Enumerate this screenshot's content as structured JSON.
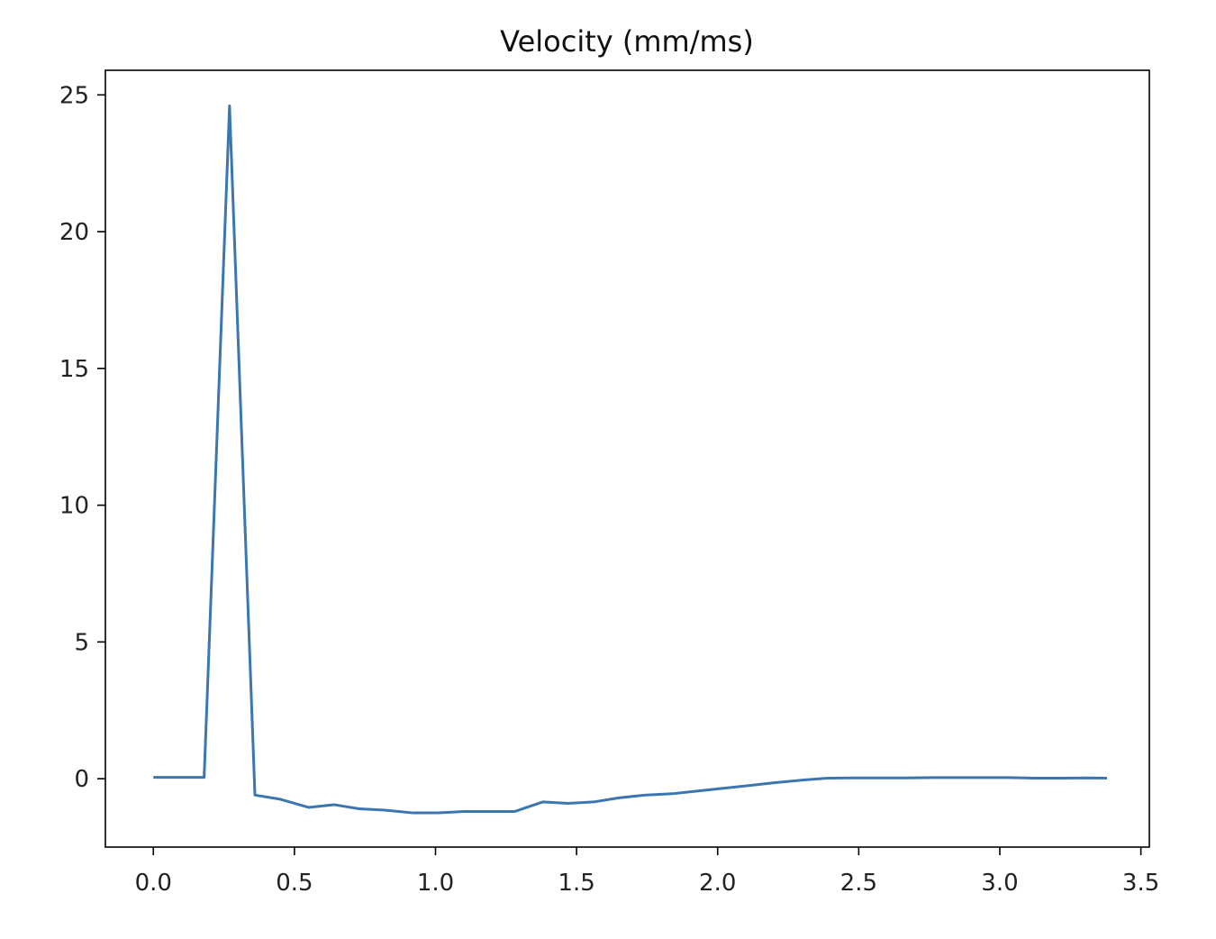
{
  "chart_data": {
    "type": "line",
    "title": "Velocity (mm/ms)",
    "xlabel": "",
    "ylabel": "",
    "xlim": [
      -0.17,
      3.53
    ],
    "ylim": [
      -2.5,
      25.9
    ],
    "xticks": [
      0.0,
      0.5,
      1.0,
      1.5,
      2.0,
      2.5,
      3.0,
      3.5
    ],
    "xtick_labels": [
      "0.0",
      "0.5",
      "1.0",
      "1.5",
      "2.0",
      "2.5",
      "3.0",
      "3.5"
    ],
    "yticks": [
      0,
      5,
      10,
      15,
      20,
      25
    ],
    "ytick_labels": [
      "0",
      "5",
      "10",
      "15",
      "20",
      "25"
    ],
    "grid": false,
    "legend": "none",
    "series": [
      {
        "color": "#3a76b0",
        "x": [
          0.0,
          0.09,
          0.18,
          0.27,
          0.36,
          0.45,
          0.55,
          0.64,
          0.73,
          0.82,
          0.92,
          1.01,
          1.1,
          1.19,
          1.28,
          1.38,
          1.47,
          1.56,
          1.65,
          1.74,
          1.84,
          1.93,
          2.02,
          2.11,
          2.2,
          2.3,
          2.39,
          2.48,
          2.57,
          2.66,
          2.76,
          2.85,
          2.94,
          3.03,
          3.12,
          3.22,
          3.31,
          3.38
        ],
        "y": [
          0.05,
          0.05,
          0.05,
          24.6,
          -0.6,
          -0.75,
          -1.05,
          -0.95,
          -1.1,
          -1.15,
          -1.25,
          -1.25,
          -1.2,
          -1.2,
          -1.2,
          -0.85,
          -0.9,
          -0.85,
          -0.7,
          -0.6,
          -0.55,
          -0.45,
          -0.35,
          -0.25,
          -0.15,
          -0.05,
          0.02,
          0.03,
          0.03,
          0.03,
          0.04,
          0.04,
          0.04,
          0.04,
          0.02,
          0.02,
          0.03,
          0.02
        ]
      }
    ]
  }
}
